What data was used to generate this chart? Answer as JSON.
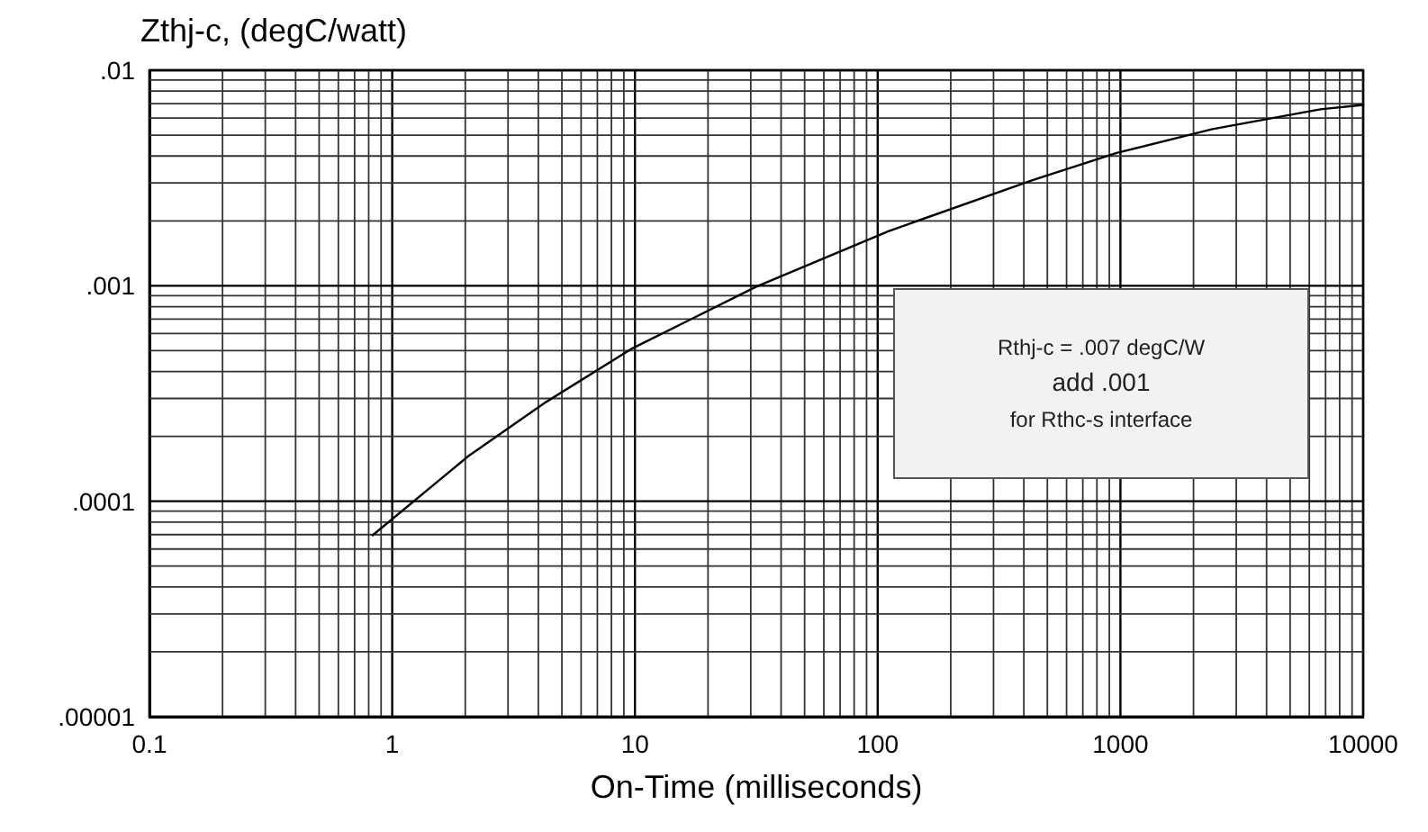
{
  "chart_data": {
    "type": "line",
    "xlabel": "On-Time (milliseconds)",
    "ylabel": "Zthj-c, (degC/watt)",
    "annotations": [
      "Rthj-c = .007 degC/W",
      "add .001",
      "for Rthc-s interface"
    ],
    "x": [
      0.83,
      2.06,
      4.31,
      9.6,
      31.6,
      110.6,
      434,
      964,
      2394,
      6668,
      10000
    ],
    "series": [
      {
        "color": "#000000",
        "values": [
          6.95e-05,
          0.000162,
          0.000289,
          0.000507,
          0.00099,
          0.00179,
          0.00309,
          0.00413,
          0.00533,
          0.00659,
          0.0069
        ]
      }
    ],
    "log": "xy",
    "grid": true,
    "marker": "none",
    "line_style": "solid",
    "xlim": [
      0.1,
      10000
    ],
    "xticks": [
      0.1,
      1,
      10,
      100,
      1000,
      10000
    ],
    "ylim": [
      1e-05,
      0.01
    ],
    "yticks": [
      {
        "value": 1e-05,
        "label": ".00001"
      },
      {
        "value": 0.0001,
        "label": ".0001"
      },
      {
        "value": 0.001,
        "label": ".001"
      },
      {
        "value": 0.01,
        "label": ".01"
      }
    ]
  }
}
